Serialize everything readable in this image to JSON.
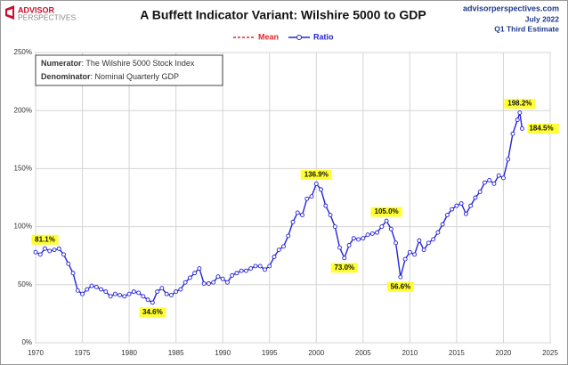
{
  "chart_data": {
    "type": "line",
    "title": "A Buffett Indicator Variant: Wilshire 5000 to GDP",
    "logo": {
      "top": "ADVISOR",
      "bottom": "PERSPECTIVES"
    },
    "source": [
      "advisorperspectives.com",
      "July 2022",
      "Q1 Third Estimate"
    ],
    "note": [
      {
        "label": "Numerator",
        "text": ": The Wilshire 5000 Stock Index"
      },
      {
        "label": "Denominator",
        "text": ": Nominal Quarterly GDP"
      }
    ],
    "x": [
      1970,
      1970.5,
      1971,
      1971.5,
      1972,
      1972.5,
      1973,
      1973.5,
      1974,
      1974.5,
      1975,
      1975.5,
      1976,
      1976.5,
      1977,
      1977.5,
      1978,
      1978.5,
      1979,
      1979.5,
      1980,
      1980.5,
      1981,
      1981.5,
      1982,
      1982.5,
      1983,
      1983.5,
      1984,
      1984.5,
      1985,
      1985.5,
      1986,
      1986.5,
      1987,
      1987.5,
      1988,
      1988.5,
      1989,
      1989.5,
      1990,
      1990.5,
      1991,
      1991.5,
      1992,
      1992.5,
      1993,
      1993.5,
      1994,
      1994.5,
      1995,
      1995.5,
      1996,
      1996.5,
      1997,
      1997.5,
      1998,
      1998.5,
      1999,
      1999.5,
      2000,
      2000.5,
      2001,
      2001.5,
      2002,
      2002.5,
      2003,
      2003.5,
      2004,
      2004.5,
      2005,
      2005.5,
      2006,
      2006.5,
      2007,
      2007.5,
      2008,
      2008.5,
      2009,
      2009.5,
      2010,
      2010.5,
      2011,
      2011.5,
      2012,
      2012.5,
      2013,
      2013.5,
      2014,
      2014.5,
      2015,
      2015.5,
      2016,
      2016.5,
      2017,
      2017.5,
      2018,
      2018.5,
      2019,
      2019.5,
      2020,
      2020.5,
      2021,
      2021.5,
      2021.75,
      2022
    ],
    "series": [
      {
        "name": "Mean",
        "color": "#e02828",
        "dash": true,
        "values": [
          null,
          null,
          null,
          null,
          null,
          null,
          null,
          null,
          null,
          null,
          null,
          null,
          null,
          null,
          null,
          null,
          null,
          null,
          null,
          null,
          null,
          null,
          null,
          null,
          null,
          null,
          null,
          null,
          null,
          null,
          null,
          null,
          null,
          null,
          null,
          null,
          null,
          null,
          null,
          null,
          null,
          null,
          null,
          null,
          null,
          null,
          null,
          null,
          null,
          null,
          null,
          null,
          null,
          null,
          null,
          null,
          null,
          null,
          null,
          null,
          null,
          null,
          null,
          null,
          null,
          null,
          null,
          null,
          null,
          null,
          null,
          null,
          null,
          null,
          null,
          null,
          null,
          null,
          null,
          null,
          null,
          null,
          null,
          null,
          null,
          null,
          null,
          null,
          null,
          null,
          null,
          null,
          null,
          null,
          null,
          null,
          null,
          null,
          null,
          null,
          null,
          null,
          null,
          null,
          null,
          null
        ]
      },
      {
        "name": "Ratio",
        "color": "#2424d8",
        "values": [
          78,
          76,
          81.1,
          79,
          80,
          81,
          76,
          68,
          60,
          45,
          42,
          46,
          49,
          48,
          46,
          44,
          40,
          42,
          41,
          40,
          42,
          44,
          43,
          40,
          37,
          34.6,
          44,
          47,
          42,
          41,
          44,
          46,
          52,
          56,
          60,
          64,
          51,
          51,
          52,
          57,
          55,
          52,
          58,
          60,
          62,
          62,
          64,
          66,
          66,
          63,
          66,
          74,
          80,
          83,
          92,
          104,
          112,
          110,
          124,
          126,
          136.9,
          132,
          118,
          110,
          100,
          82,
          73.0,
          84,
          90,
          89,
          90,
          93,
          94,
          95,
          100,
          105.0,
          98,
          86,
          56.6,
          72,
          78,
          76,
          88,
          80,
          86,
          89,
          95,
          102,
          110,
          115,
          118,
          120,
          111,
          118,
          125,
          130,
          138,
          140,
          137,
          144,
          142,
          158,
          180,
          192,
          198.2,
          184.5
        ],
        "value_labels": [
          null,
          null,
          "81.1%",
          null,
          null,
          null,
          null,
          null,
          null,
          null,
          null,
          null,
          null,
          null,
          null,
          null,
          null,
          null,
          null,
          null,
          null,
          null,
          null,
          null,
          null,
          "34.6%",
          null,
          null,
          null,
          null,
          null,
          null,
          null,
          null,
          null,
          null,
          null,
          null,
          null,
          null,
          null,
          null,
          null,
          null,
          null,
          null,
          null,
          null,
          null,
          null,
          null,
          null,
          null,
          null,
          null,
          null,
          null,
          null,
          null,
          null,
          "136.9%",
          null,
          null,
          null,
          null,
          null,
          "73.0%",
          null,
          null,
          null,
          null,
          null,
          null,
          null,
          null,
          "105.0%",
          null,
          null,
          "56.6%",
          null,
          null,
          null,
          null,
          null,
          null,
          null,
          null,
          null,
          null,
          null,
          null,
          null,
          null,
          null,
          null,
          null,
          null,
          null,
          null,
          null,
          null,
          null,
          null,
          null,
          "198.2%",
          "184.5%"
        ]
      }
    ],
    "xlim": [
      1970,
      2025
    ],
    "xticks": [
      1970,
      1975,
      1980,
      1985,
      1990,
      1995,
      2000,
      2005,
      2010,
      2015,
      2020,
      2025
    ],
    "ylim": [
      0,
      250
    ],
    "yticks": [
      {
        "value": 0,
        "label": "0%"
      },
      {
        "value": 50,
        "label": "50%"
      },
      {
        "value": 100,
        "label": "100%"
      },
      {
        "value": 150,
        "label": "150%"
      },
      {
        "value": 200,
        "label": "200%"
      },
      {
        "value": 250,
        "label": "250%"
      }
    ],
    "grid": true
  }
}
